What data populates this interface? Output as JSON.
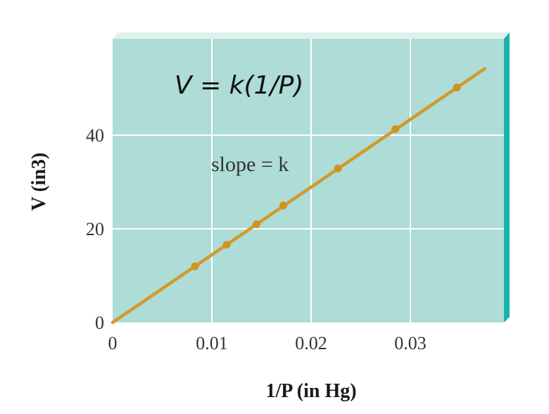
{
  "colors": {
    "plot_background": "#aedcd6",
    "plot_top_face": "#dff2ef",
    "plot_side_face": "#1bb3a8",
    "gridline": "#ffffff",
    "line": "#d19a2a",
    "point": "#d09320"
  },
  "chart_data": {
    "type": "line",
    "equation": "V = k(1/P)",
    "annotation": "slope = k",
    "xlabel": "1/P (in Hg)",
    "ylabel": "V (in3)",
    "xlim": [
      0,
      0.04
    ],
    "ylim": [
      0,
      52
    ],
    "x_ticks": [
      {
        "value": 0,
        "label": "0"
      },
      {
        "value": 0.01,
        "label": "0.01"
      },
      {
        "value": 0.02,
        "label": "0.02"
      },
      {
        "value": 0.03,
        "label": "0.03"
      }
    ],
    "y_ticks": [
      {
        "value": 0,
        "label": "0"
      },
      {
        "value": 20,
        "label": "20"
      },
      {
        "value": 40,
        "label": "40"
      }
    ],
    "grid": true,
    "fit_line": {
      "x": [
        0,
        0.0375
      ],
      "y": [
        0,
        54.2
      ]
    },
    "series": [
      {
        "x": [
          0.0083,
          0.0115,
          0.0145,
          0.0172,
          0.0227,
          0.0285,
          0.0347
        ],
        "y": [
          12.0,
          16.6,
          21.0,
          25.0,
          32.9,
          41.3,
          50.2
        ]
      }
    ]
  }
}
